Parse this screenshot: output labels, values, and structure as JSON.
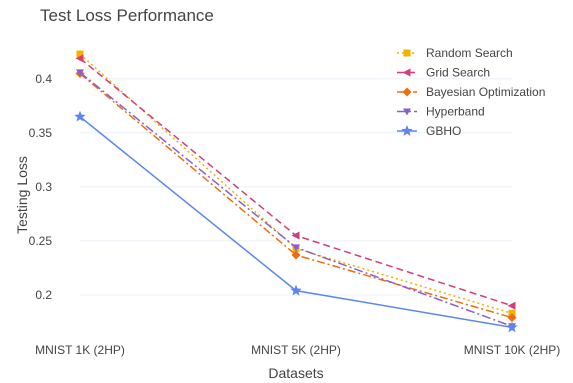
{
  "chart_data": {
    "type": "line",
    "title": "Test Loss Performance",
    "xlabel": "Datasets",
    "ylabel": "Testing Loss",
    "categories": [
      "MNIST 1K (2HP)",
      "MNIST 5K (2HP)",
      "MNIST 10K (2HP)"
    ],
    "y_ticks": [
      0.2,
      0.25,
      0.3,
      0.35,
      0.4
    ],
    "ylim": [
      0.162,
      0.436
    ],
    "grid": true,
    "legend_position": "top-right",
    "series": [
      {
        "name": "Random Search",
        "values": [
          0.423,
          0.243,
          0.183
        ],
        "color": "#f5b100",
        "dash": "2,3",
        "marker": "square"
      },
      {
        "name": "Grid Search",
        "values": [
          0.419,
          0.255,
          0.19
        ],
        "color": "#d63b7d",
        "dash": "7,4",
        "marker": "triangle-left"
      },
      {
        "name": "Bayesian Optimization",
        "values": [
          0.405,
          0.237,
          0.179
        ],
        "color": "#f06d0e",
        "dash": "8,3,2,3",
        "marker": "diamond"
      },
      {
        "name": "Hyperband",
        "values": [
          0.406,
          0.244,
          0.171
        ],
        "color": "#8860d0",
        "dash": "9,3,2,3",
        "marker": "triangle-down"
      },
      {
        "name": "GBHO",
        "values": [
          0.365,
          0.204,
          0.17
        ],
        "color": "#5b86f0",
        "dash": "",
        "marker": "star"
      }
    ]
  }
}
